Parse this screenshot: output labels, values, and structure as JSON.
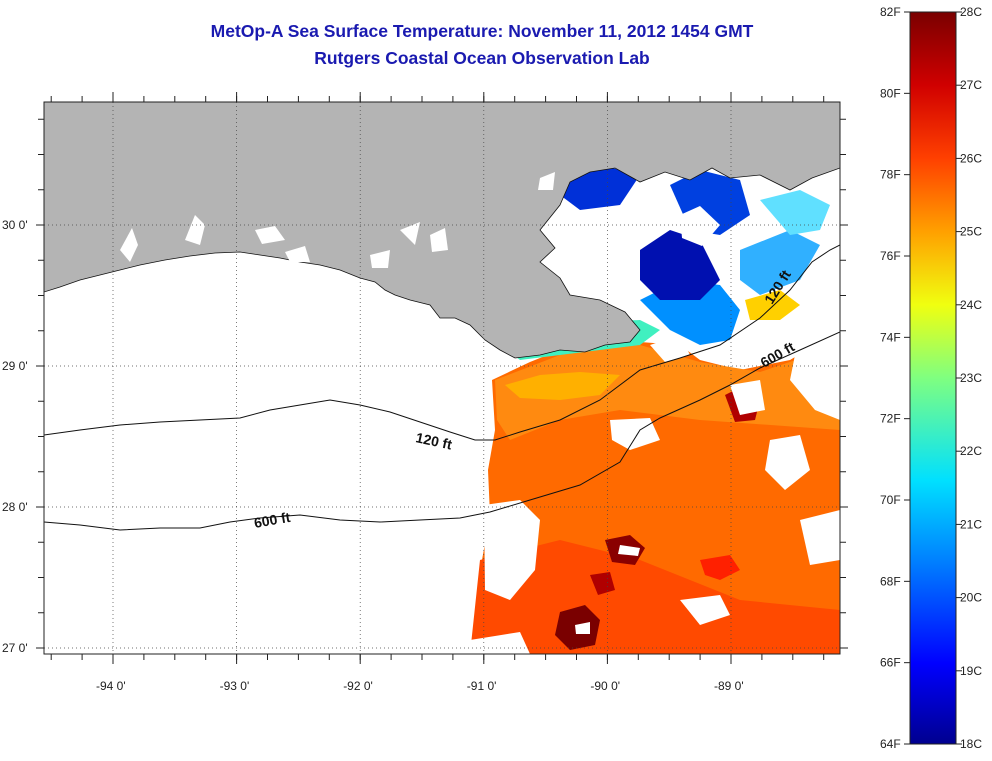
{
  "header": {
    "title_line1": "MetOp-A Sea Surface Temperature:  November 11, 2012 1454 GMT",
    "title_line2": "Rutgers Coastal Ocean Observation Lab"
  },
  "axes": {
    "lon_ticks": [
      {
        "label": "-94 0'",
        "value": -94
      },
      {
        "label": "-93 0'",
        "value": -93
      },
      {
        "label": "-92 0'",
        "value": -92
      },
      {
        "label": "-91 0'",
        "value": -91
      },
      {
        "label": "-90 0'",
        "value": -90
      },
      {
        "label": "-89 0'",
        "value": -89
      }
    ],
    "lat_ticks": [
      {
        "label": "30 0'",
        "value": 30
      },
      {
        "label": "29 0'",
        "value": 29
      },
      {
        "label": "28 0'",
        "value": 28
      },
      {
        "label": "27 0'",
        "value": 27
      }
    ]
  },
  "contours": {
    "label_120_west": "120 ft",
    "label_600_west": "600 ft",
    "label_120_east": "120 ft",
    "label_600_east": "600 ft"
  },
  "colorbar": {
    "fahrenheit": [
      "82F",
      "80F",
      "78F",
      "76F",
      "74F",
      "72F",
      "70F",
      "68F",
      "66F",
      "64F"
    ],
    "celsius": [
      "28C",
      "27C",
      "26C",
      "25C",
      "24C",
      "23C",
      "22C",
      "21C",
      "20C",
      "19C",
      "18C"
    ],
    "colors": [
      "#7a0000",
      "#c80000",
      "#ff2a00",
      "#ff7a00",
      "#ffc800",
      "#e8ff18",
      "#6affa0",
      "#00e0ff",
      "#0090ff",
      "#0038ff",
      "#00008f"
    ]
  },
  "colors": {
    "land": "#b4b4b4",
    "water_nodata": "#ffffff",
    "title": "#1a1ab0"
  }
}
